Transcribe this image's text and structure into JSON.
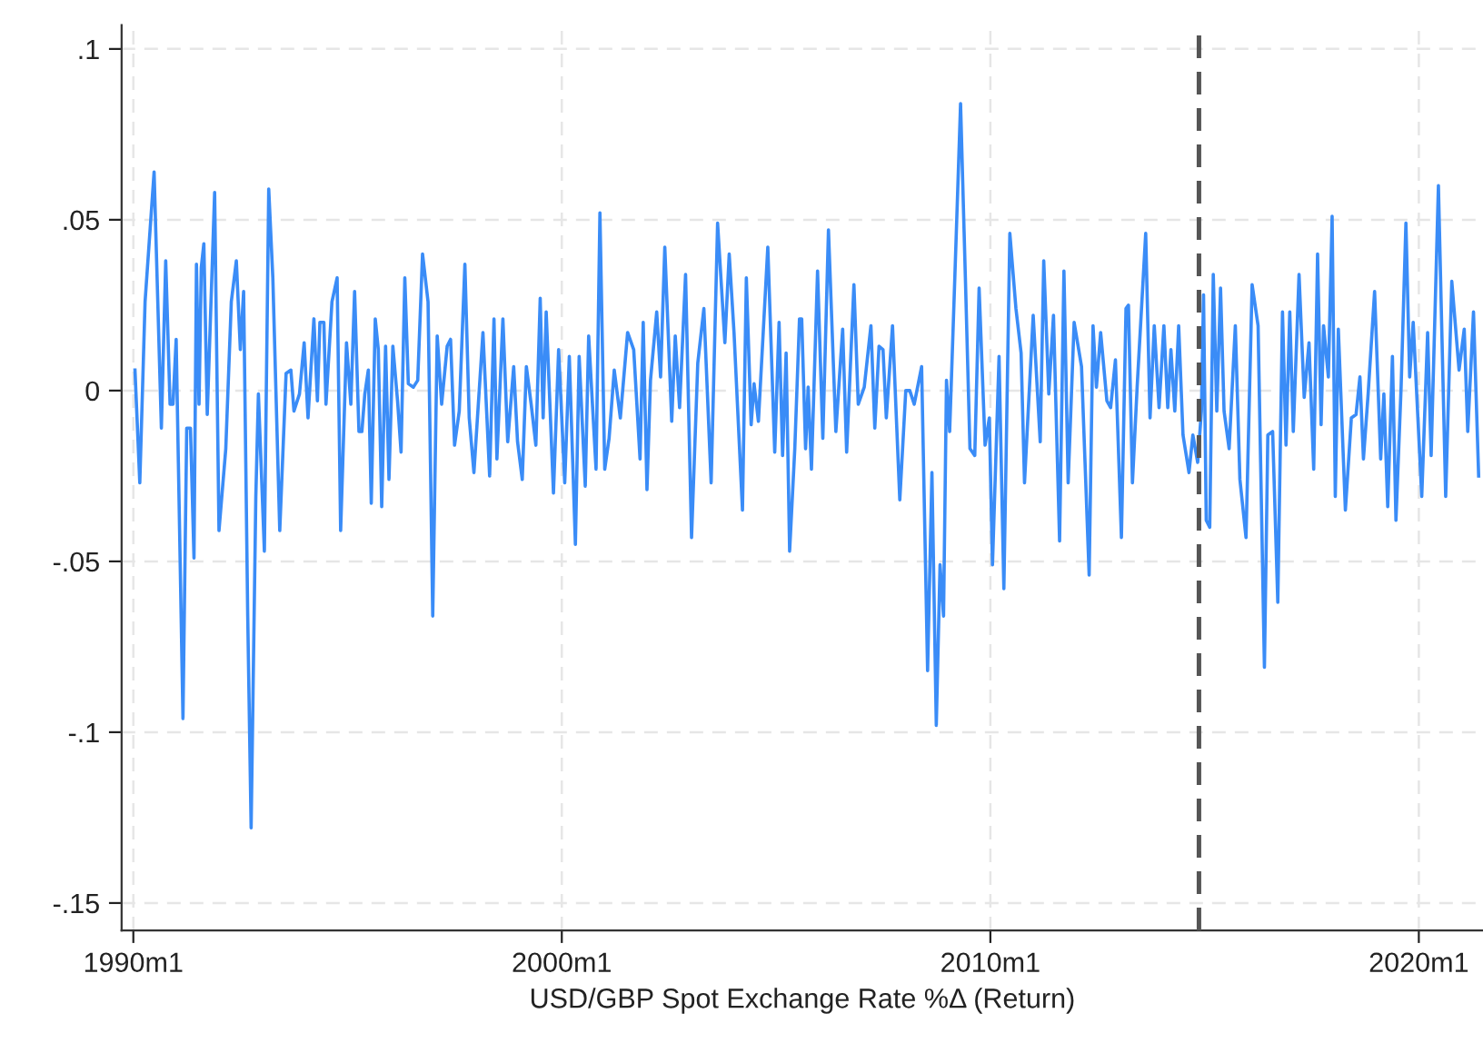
{
  "chart_data": {
    "type": "line",
    "xlabel": "USD/GBP Spot Exchange Rate %Δ (Return)",
    "xlim": [
      "1989-09-23",
      "2021-07-01"
    ],
    "ylim": [
      -0.158,
      0.107
    ],
    "xticks": [
      {
        "value": "1990-01-01",
        "label": "1990m1"
      },
      {
        "value": "2000-01-01",
        "label": "2000m1"
      },
      {
        "value": "2010-01-01",
        "label": "2010m1"
      },
      {
        "value": "2020-01-01",
        "label": "2020m1"
      }
    ],
    "yticks": [
      {
        "value": -0.15,
        "label": "-.15"
      },
      {
        "value": -0.1,
        "label": "-.1"
      },
      {
        "value": -0.05,
        "label": "-.05"
      },
      0,
      {
        "value": 0.05,
        "label": ".05"
      },
      {
        "value": 0.1,
        "label": ".1"
      }
    ],
    "grid": true,
    "line_style": "solid",
    "marker": "none",
    "ref_lines": [
      {
        "axis": "x",
        "value": "2014-11-14",
        "label": null,
        "color": "#555555",
        "line_style": "dashed"
      }
    ],
    "series": [
      {
        "color": "#3a8cf7",
        "x": [
          "1990-01-15",
          "1990-02-25",
          "1990-04-11",
          "1990-06-27",
          "1990-08-28",
          "1990-10-04",
          "1990-11-10",
          "1990-12-05",
          "1991-01-01",
          "1991-02-28",
          "1991-04-01",
          "1991-05-03",
          "1991-06-02",
          "1991-06-23",
          "1991-07-15",
          "1991-08-03",
          "1991-08-25",
          "1991-09-23",
          "1991-11-25",
          "1992-01-01",
          "1992-02-28",
          "1992-04-15",
          "1992-05-28",
          "1992-07-01",
          "1992-07-29",
          "1992-09-02",
          "1992-10-01",
          "1992-11-10",
          "1992-12-02",
          "1993-01-22",
          "1993-02-28",
          "1993-04-04",
          "1993-06-02",
          "1993-07-26",
          "1993-09-05",
          "1993-10-01",
          "1993-11-17",
          "1993-12-27",
          "1994-01-29",
          "1994-03-20",
          "1994-04-19",
          "1994-05-10",
          "1994-06-13",
          "1994-07-01",
          "1994-08-21",
          "1994-10-04",
          "1994-11-03",
          "1994-12-23",
          "1995-01-29",
          "1995-03-02",
          "1995-04-08",
          "1995-05-03",
          "1995-05-28",
          "1995-06-27",
          "1995-07-22",
          "1995-08-25",
          "1995-09-20",
          "1995-10-19",
          "1995-11-21",
          "1995-12-20",
          "1996-01-22",
          "1996-03-02",
          "1996-04-01",
          "1996-05-03",
          "1996-06-02",
          "1996-07-15",
          "1996-08-21",
          "1996-10-01",
          "1996-11-17",
          "1996-12-27",
          "1997-02-03",
          "1997-03-13",
          "1997-04-29",
          "1997-05-28",
          "1997-07-01",
          "1997-08-10",
          "1997-09-27",
          "1997-11-03",
          "1997-12-13",
          "1998-02-28",
          "1998-04-26",
          "1998-06-02",
          "1998-06-27",
          "1998-08-17",
          "1998-09-27",
          "1998-11-17",
          "1998-12-20",
          "1999-01-29",
          "1999-03-05",
          "1999-04-15",
          "1999-05-25",
          "1999-07-01",
          "1999-07-26",
          "1999-08-21",
          "1999-10-22",
          "1999-12-05",
          "2000-01-26",
          "2000-03-05",
          "2000-04-26",
          "2000-05-28",
          "2000-07-19",
          "2000-08-17",
          "2000-10-19",
          "2000-11-21",
          "2001-01-01",
          "2001-02-07",
          "2001-03-23",
          "2001-05-14",
          "2001-07-15",
          "2001-09-05",
          "2001-10-29",
          "2001-11-25",
          "2001-12-27",
          "2002-01-26",
          "2002-03-20",
          "2002-04-22",
          "2002-05-28",
          "2002-07-26",
          "2002-08-25",
          "2002-10-01",
          "2002-11-21",
          "2003-01-11",
          "2003-03-05",
          "2003-04-26",
          "2003-06-27",
          "2003-08-21",
          "2003-10-22",
          "2003-11-28",
          "2004-01-08",
          "2004-03-20",
          "2004-04-22",
          "2004-06-02",
          "2004-06-27",
          "2004-08-03",
          "2004-10-22",
          "2004-12-20",
          "2005-01-26",
          "2005-02-25",
          "2005-03-27",
          "2005-04-26",
          "2005-06-09",
          "2005-07-19",
          "2005-08-07",
          "2005-09-09",
          "2005-10-01",
          "2005-10-29",
          "2005-12-20",
          "2006-02-03",
          "2006-03-23",
          "2006-05-25",
          "2006-07-22",
          "2006-08-25",
          "2006-10-26",
          "2006-12-02",
          "2007-01-22",
          "2007-03-20",
          "2007-04-22",
          "2007-05-28",
          "2007-07-01",
          "2007-07-29",
          "2007-09-20",
          "2007-11-21",
          "2008-01-11",
          "2008-02-14",
          "2008-03-23",
          "2008-05-25",
          "2008-07-15",
          "2008-08-21",
          "2008-09-27",
          "2008-10-29",
          "2008-11-28",
          "2008-12-23",
          "2009-01-19",
          "2009-03-05",
          "2009-04-22",
          "2009-06-02",
          "2009-07-11",
          "2009-08-21",
          "2009-09-27",
          "2009-11-17",
          "2009-12-23",
          "2010-01-19",
          "2010-03-16",
          "2010-04-26",
          "2010-06-16",
          "2010-08-07",
          "2010-09-20",
          "2010-10-19",
          "2011-01-01",
          "2011-03-02",
          "2011-04-01",
          "2011-05-14",
          "2011-06-23",
          "2011-08-14",
          "2011-09-20",
          "2011-10-26",
          "2011-12-16",
          "2012-01-19",
          "2012-02-17",
          "2012-04-22",
          "2012-05-25",
          "2012-06-23",
          "2012-07-29",
          "2012-09-20",
          "2012-10-22",
          "2012-12-02",
          "2013-01-22",
          "2013-03-02",
          "2013-03-23",
          "2013-04-26",
          "2013-06-05",
          "2013-08-17",
          "2013-09-23",
          "2013-10-29",
          "2013-12-09",
          "2014-01-19",
          "2014-02-21",
          "2014-03-20",
          "2014-04-22",
          "2014-05-25",
          "2014-07-01",
          "2014-08-21",
          "2014-09-23",
          "2014-11-03",
          "2014-12-05",
          "2014-12-23",
          "2015-01-15",
          "2015-02-14",
          "2015-03-16",
          "2015-04-15",
          "2015-05-17",
          "2015-06-16",
          "2015-07-29",
          "2015-09-20",
          "2015-10-29",
          "2015-12-20",
          "2016-02-10",
          "2016-04-01",
          "2016-05-25",
          "2016-06-23",
          "2016-08-03",
          "2016-09-16",
          "2016-10-26",
          "2016-11-25",
          "2016-12-27",
          "2017-01-26",
          "2017-03-16",
          "2017-04-29",
          "2017-06-09",
          "2017-07-19",
          "2017-08-21",
          "2017-09-20",
          "2017-10-11",
          "2017-11-21",
          "2017-12-23",
          "2018-01-19",
          "2018-02-14",
          "2018-04-15",
          "2018-06-05",
          "2018-07-15",
          "2018-08-17",
          "2018-09-16",
          "2018-10-26",
          "2018-12-20",
          "2019-02-10",
          "2019-03-09",
          "2019-04-11",
          "2019-05-21",
          "2019-06-20",
          "2019-08-03",
          "2019-09-13",
          "2019-10-15",
          "2019-11-14",
          "2020-01-26",
          "2020-03-16",
          "2020-04-15",
          "2020-06-16",
          "2020-08-17",
          "2020-10-08",
          "2020-12-09",
          "2021-01-22",
          "2021-02-21",
          "2021-04-11",
          "2021-05-25"
        ],
        "values": [
          0.006,
          -0.027,
          0.026,
          0.064,
          -0.011,
          0.038,
          -0.004,
          -0.004,
          0.015,
          -0.096,
          -0.011,
          -0.011,
          -0.049,
          0.037,
          -0.004,
          0.036,
          0.043,
          -0.007,
          0.058,
          -0.041,
          -0.017,
          0.026,
          0.038,
          0.012,
          0.029,
          -0.066,
          -0.128,
          -0.031,
          -0.001,
          -0.047,
          0.059,
          0.033,
          -0.041,
          0.005,
          0.006,
          -0.006,
          -0.001,
          0.014,
          -0.008,
          0.021,
          -0.003,
          0.02,
          0.02,
          -0.004,
          0.026,
          0.033,
          -0.041,
          0.014,
          -0.004,
          0.029,
          -0.012,
          -0.012,
          -0.001,
          0.006,
          -0.033,
          0.021,
          0.012,
          -0.034,
          0.013,
          -0.026,
          0.013,
          -0.003,
          -0.018,
          0.033,
          0.002,
          0.001,
          0.003,
          0.04,
          0.026,
          -0.066,
          0.016,
          -0.004,
          0.013,
          0.015,
          -0.016,
          -0.006,
          0.037,
          -0.008,
          -0.024,
          0.017,
          -0.025,
          0.021,
          -0.02,
          0.021,
          -0.015,
          0.007,
          -0.015,
          -0.026,
          0.007,
          -0.004,
          -0.016,
          0.027,
          -0.008,
          0.023,
          -0.03,
          0.012,
          -0.027,
          0.01,
          -0.045,
          0.01,
          -0.028,
          0.016,
          -0.023,
          0.052,
          -0.023,
          -0.014,
          0.006,
          -0.008,
          0.017,
          0.012,
          -0.02,
          0.02,
          -0.029,
          0.003,
          0.023,
          0.004,
          0.042,
          -0.009,
          0.016,
          -0.005,
          0.034,
          -0.043,
          0.008,
          0.024,
          -0.027,
          0.049,
          0.014,
          0.04,
          0.017,
          -0.035,
          0.033,
          -0.01,
          0.002,
          -0.009,
          0.042,
          -0.018,
          0.02,
          -0.019,
          0.011,
          -0.047,
          -0.017,
          0.021,
          0.021,
          -0.017,
          0.001,
          -0.023,
          0.035,
          -0.014,
          0.047,
          -0.012,
          0.018,
          -0.018,
          0.031,
          -0.004,
          0.001,
          0.019,
          -0.011,
          0.013,
          0.012,
          -0.008,
          0.019,
          -0.032,
          0.0,
          0.0,
          -0.004,
          0.007,
          -0.082,
          -0.024,
          -0.098,
          -0.051,
          -0.066,
          0.003,
          -0.012,
          0.034,
          0.084,
          0.033,
          -0.017,
          -0.019,
          0.03,
          -0.016,
          -0.008,
          -0.051,
          0.01,
          -0.058,
          0.046,
          0.024,
          0.011,
          -0.027,
          0.022,
          -0.015,
          0.038,
          -0.001,
          0.022,
          -0.044,
          0.035,
          -0.027,
          0.02,
          0.013,
          0.007,
          -0.054,
          0.019,
          0.001,
          0.017,
          -0.003,
          -0.005,
          0.009,
          -0.043,
          0.024,
          0.025,
          -0.027,
          0.001,
          0.046,
          -0.008,
          0.019,
          -0.005,
          0.019,
          -0.005,
          0.012,
          -0.006,
          0.019,
          -0.013,
          -0.024,
          -0.013,
          -0.021,
          -0.006,
          0.028,
          -0.038,
          -0.04,
          0.034,
          -0.006,
          0.03,
          -0.006,
          -0.017,
          0.019,
          -0.026,
          -0.043,
          0.031,
          0.019,
          -0.081,
          -0.013,
          -0.012,
          -0.062,
          0.023,
          -0.016,
          0.023,
          -0.012,
          0.034,
          -0.002,
          0.014,
          -0.023,
          0.04,
          -0.01,
          0.019,
          0.004,
          0.051,
          -0.031,
          0.018,
          -0.035,
          -0.008,
          -0.007,
          0.004,
          -0.02,
          -0.001,
          0.029,
          -0.02,
          -0.001,
          -0.034,
          0.01,
          -0.038,
          0.001,
          0.049,
          0.004,
          0.02,
          -0.031,
          0.017,
          -0.019,
          0.06,
          -0.031,
          0.032,
          0.006,
          0.018,
          -0.012,
          0.023,
          -0.025
        ]
      }
    ]
  }
}
